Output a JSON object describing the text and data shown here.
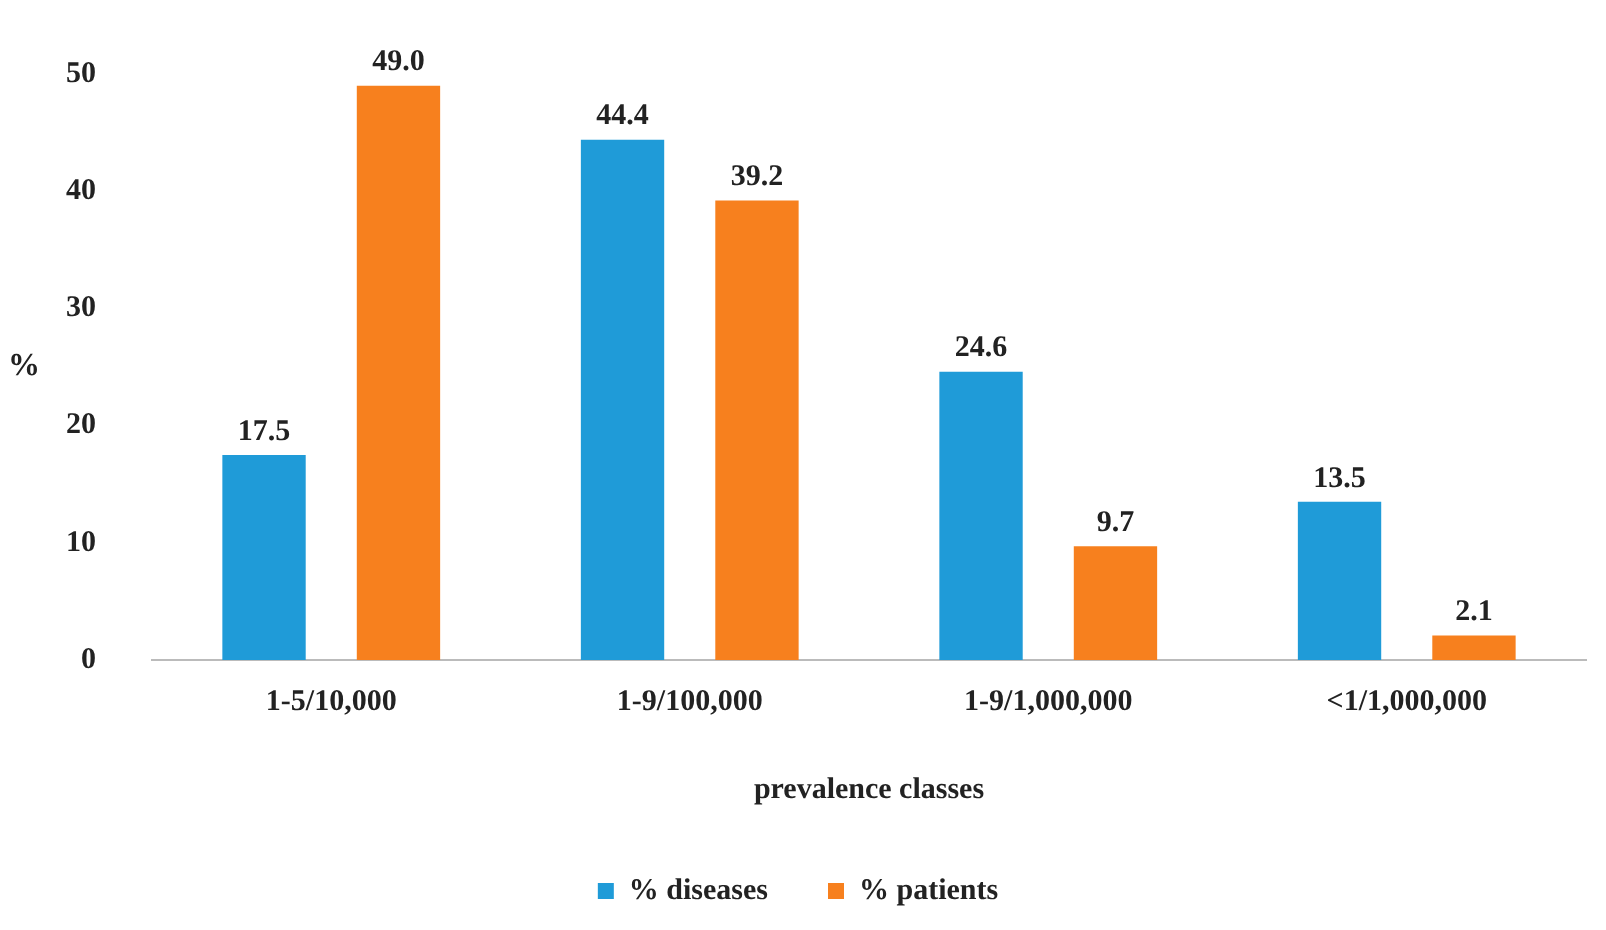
{
  "chart_data": {
    "type": "bar",
    "categories": [
      "1-5/10,000",
      "1-9/100,000",
      "1-9/1,000,000",
      "<1/1,000,000"
    ],
    "series": [
      {
        "name": "% diseases",
        "color": "#1f9bd8",
        "values": [
          17.5,
          44.4,
          24.6,
          13.5
        ],
        "value_labels": [
          "17.5",
          "44.4",
          "24.6",
          "13.5"
        ]
      },
      {
        "name": "% patients",
        "color": "#f7801e",
        "values": [
          49.0,
          39.2,
          9.7,
          2.1
        ],
        "value_labels": [
          "49.0",
          "39.2",
          "9.7",
          "2.1"
        ]
      }
    ],
    "ylim": [
      0,
      50
    ],
    "yticks": [
      0,
      10,
      20,
      30,
      40,
      50
    ],
    "xlabel": "prevalence classes",
    "ylabel": "%",
    "grid": false,
    "legend": "bottom",
    "data_labels": true
  }
}
